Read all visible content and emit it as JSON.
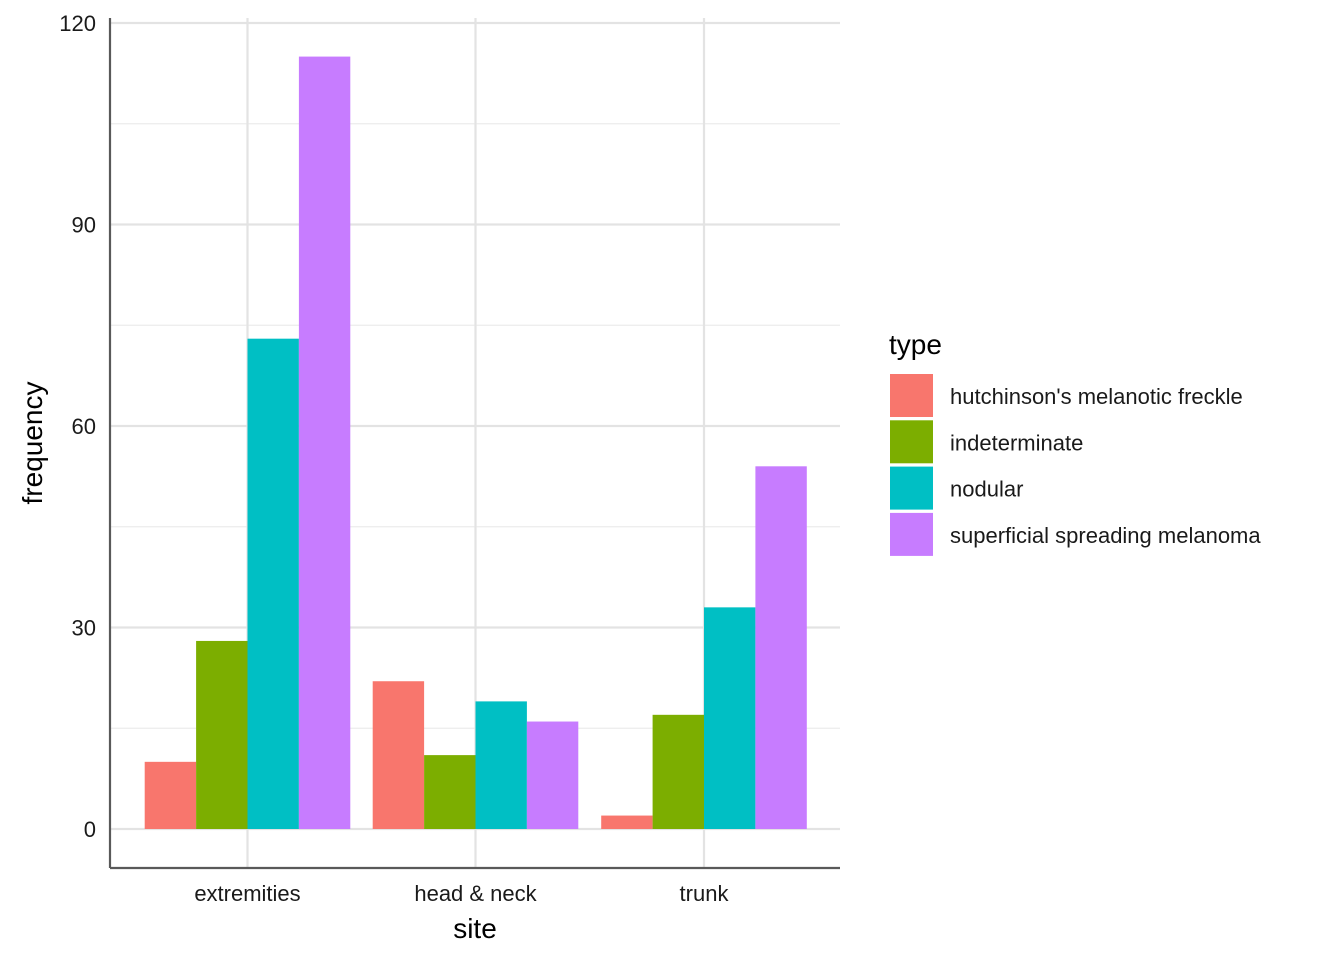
{
  "chart_data": {
    "type": "bar",
    "categories": [
      "extremities",
      "head & neck",
      "trunk"
    ],
    "series": [
      {
        "name": "hutchinson's melanotic freckle",
        "color": "#F8766D",
        "values": [
          10,
          22,
          2
        ]
      },
      {
        "name": "indeterminate",
        "color": "#7CAE00",
        "values": [
          28,
          11,
          17
        ]
      },
      {
        "name": "nodular",
        "color": "#00BFC4",
        "values": [
          73,
          19,
          33
        ]
      },
      {
        "name": "superficial spreading melanoma",
        "color": "#C77CFF",
        "values": [
          115,
          16,
          54
        ]
      }
    ],
    "xlabel": "site",
    "ylabel": "frequency",
    "ylim": [
      0,
      120
    ],
    "yticks": [
      0,
      30,
      60,
      90,
      120
    ],
    "grid": true,
    "legend": {
      "title": "type",
      "placement": "right"
    }
  }
}
